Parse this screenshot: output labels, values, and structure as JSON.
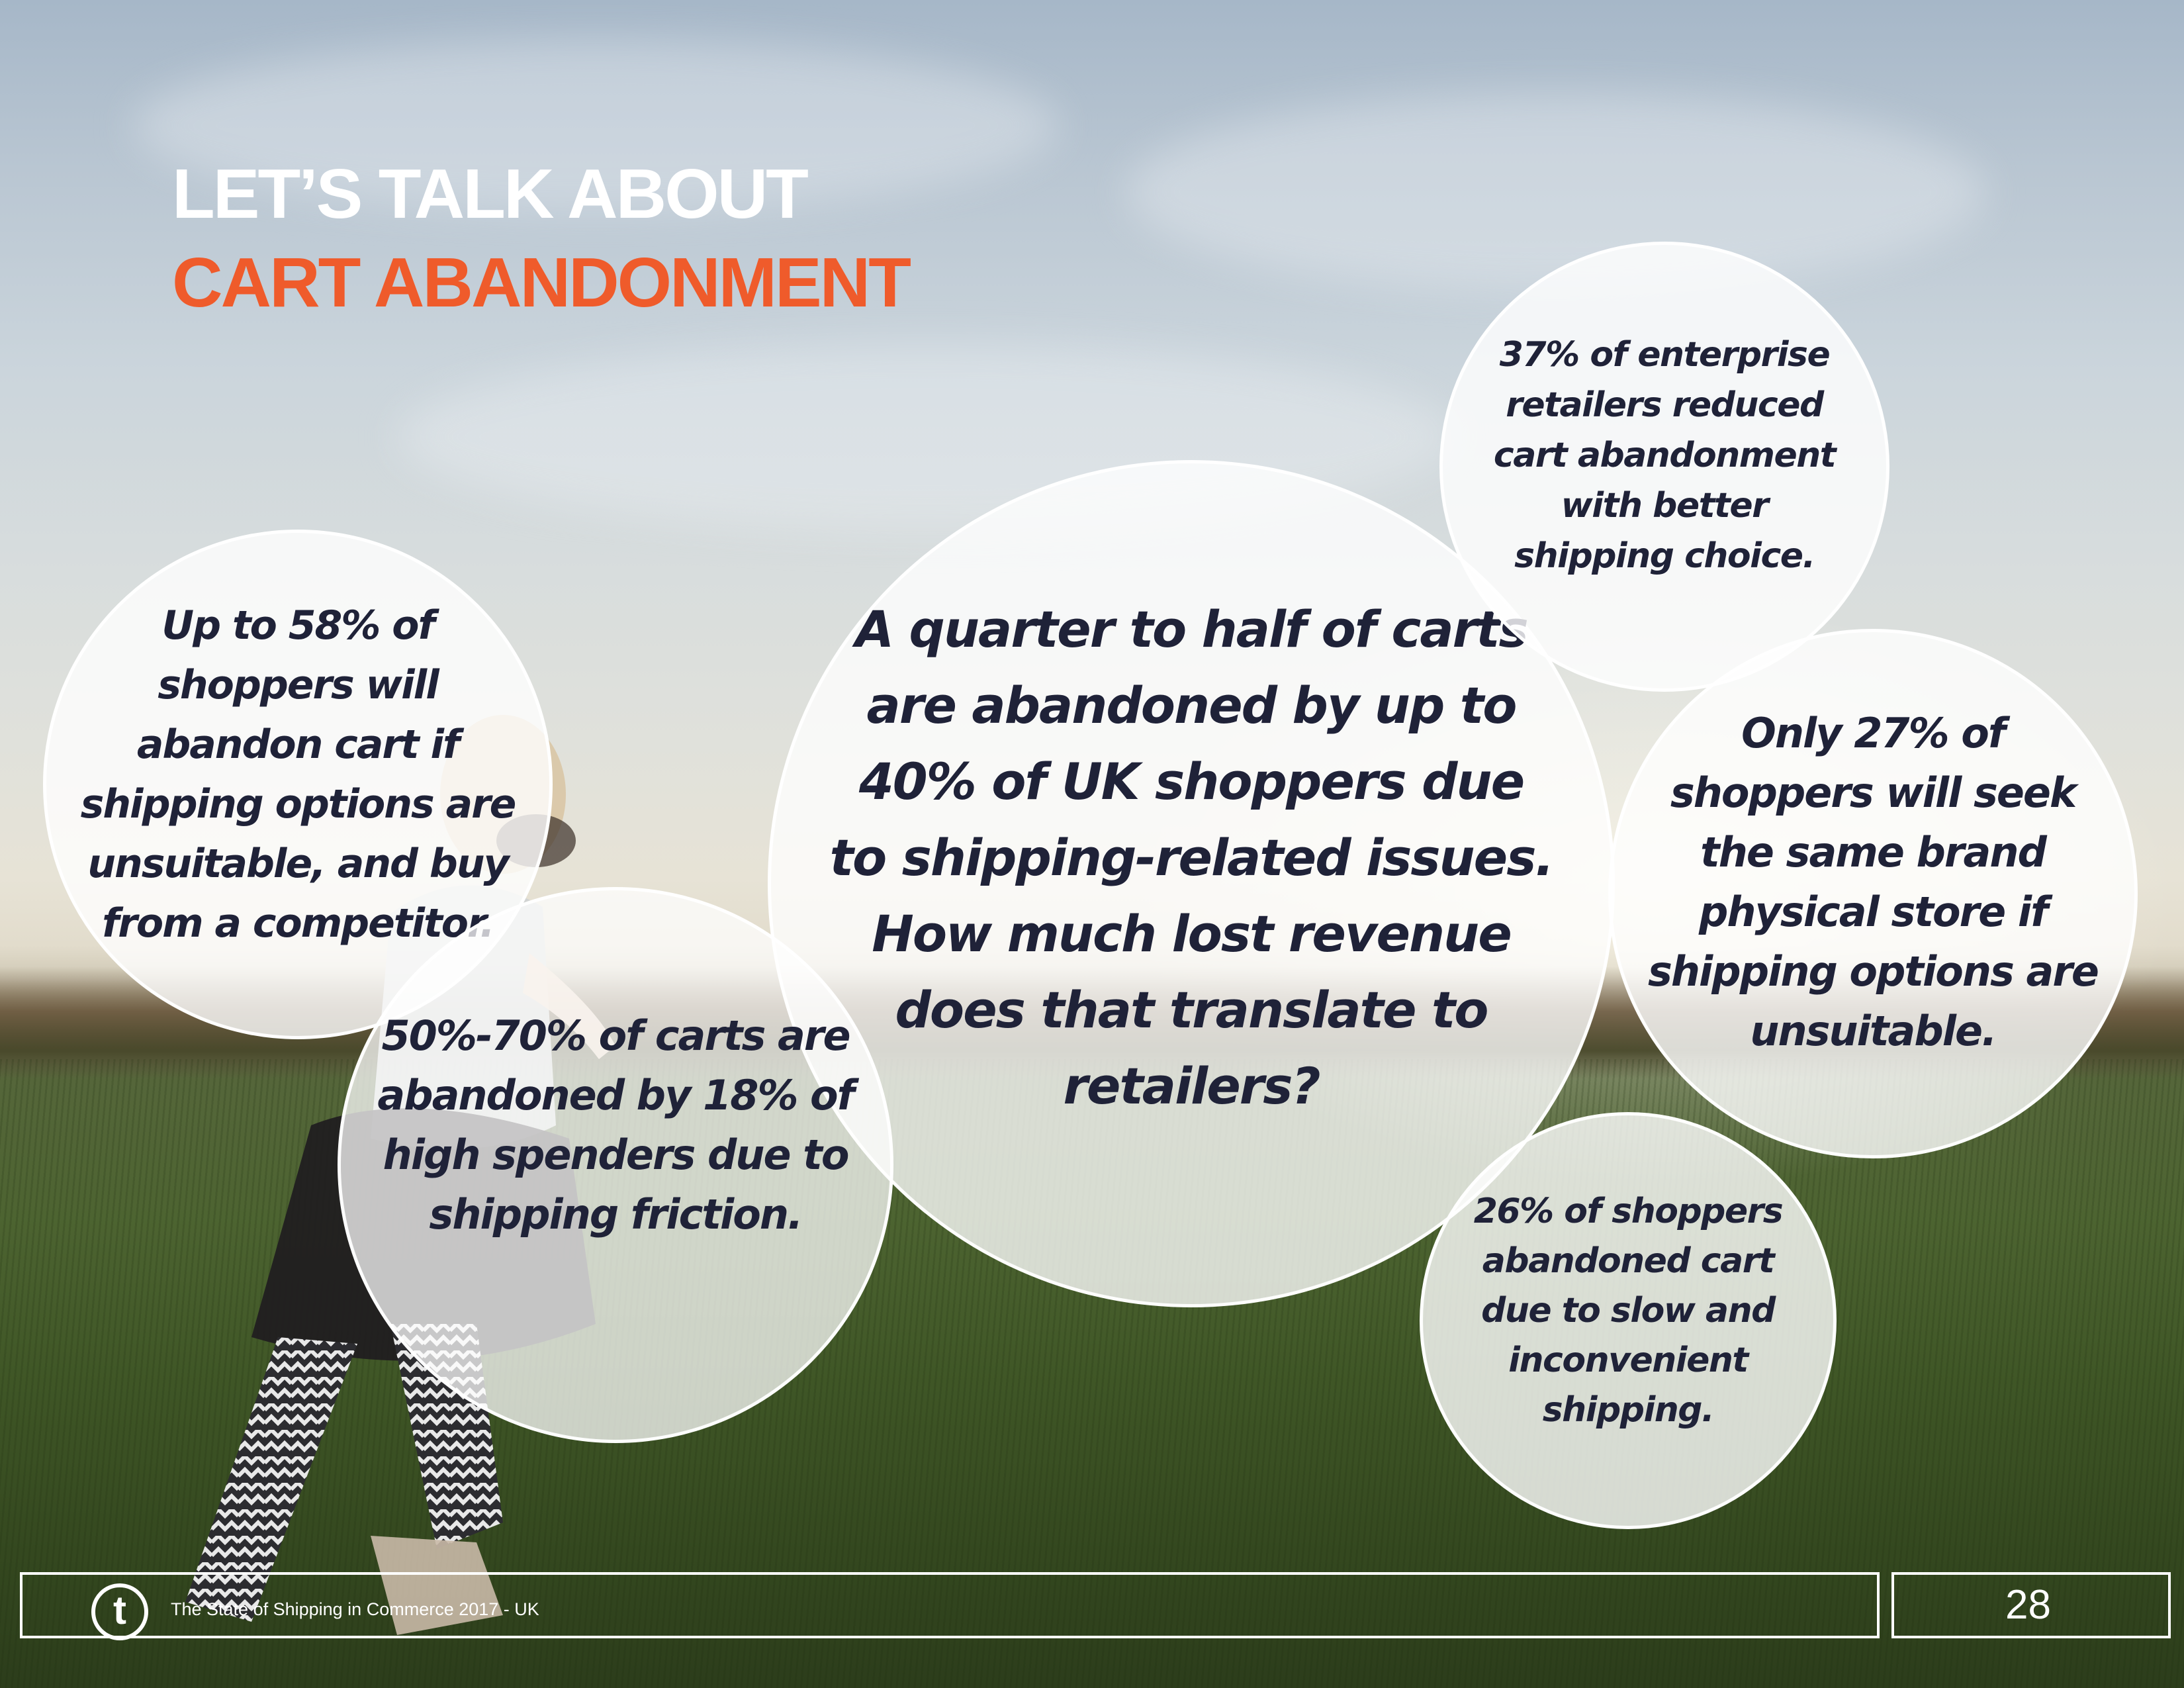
{
  "title": {
    "line1": "LET’S TALK ABOUT",
    "line2": "CART ABANDONMENT"
  },
  "bubbles": {
    "main": "A quarter to half of carts are abandoned by up to 40% of UK shoppers due to shipping-related issues. How much lost revenue does that translate to retailers?",
    "shoppers_58": "Up to 58% of shoppers will abandon cart if shipping options are unsuitable, and buy from a competitor.",
    "carts_50_70": "50%-70% of carts are abandoned by 18% of high spenders due to shipping friction.",
    "enterprise_37": "37% of enterprise retailers reduced cart abandonment with better shipping choice.",
    "shoppers_27": "Only 27% of shoppers will seek the same brand physical store if shipping options are unsuitable.",
    "shoppers_26": "26% of shoppers abandoned cart due to slow and inconvenient shipping."
  },
  "footer": {
    "logo_letter": "t",
    "publication": "The State of Shipping in Commerce 2017 - UK",
    "page_number": "28"
  },
  "colors": {
    "accent": "#ef5b2b",
    "bubble_text": "#1f2238",
    "title_white": "#ffffff"
  }
}
